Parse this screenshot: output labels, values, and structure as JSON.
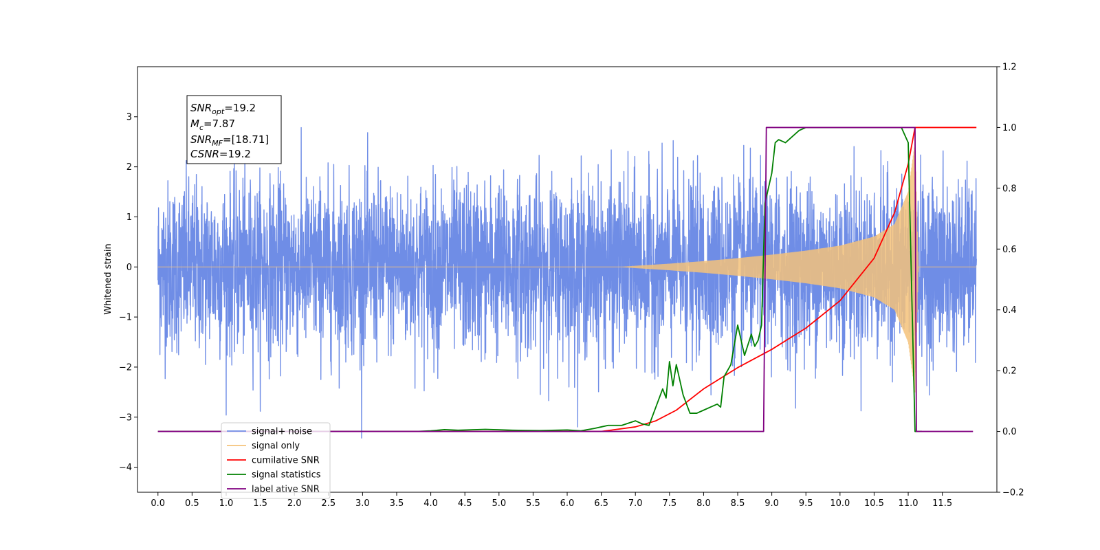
{
  "chart_data": {
    "type": "line",
    "ylabel": "Whitened strain",
    "x_ticks": [
      0.0,
      0.5,
      1.0,
      1.5,
      2.0,
      2.5,
      3.0,
      3.5,
      4.0,
      4.5,
      5.0,
      5.5,
      6.0,
      6.5,
      7.0,
      7.5,
      8.0,
      8.5,
      9.0,
      9.5,
      10.0,
      10.5,
      11.0,
      11.5
    ],
    "x_tick_labels": [
      "0.0",
      "0.5",
      "1.0",
      "1.5",
      "2.0",
      "2.5",
      "3.0",
      "3.5",
      "4.0",
      "4.5",
      "5.0",
      "5.5",
      "6.0",
      "6.5",
      "7.0",
      "7.5",
      "8.0",
      "8.5",
      "9.0",
      "9.5",
      "10.0",
      "10.5",
      "11.0",
      "11.5"
    ],
    "xlim": [
      -0.3,
      12.3
    ],
    "ylim_left": [
      -4.5,
      4.0
    ],
    "y_ticks_left": [
      -4,
      -3,
      -2,
      -1,
      0,
      1,
      2,
      3
    ],
    "y_tick_labels_left": [
      "−4",
      "−3",
      "−2",
      "−1",
      "0",
      "1",
      "2",
      "3"
    ],
    "ylim_right": [
      -0.2,
      1.2
    ],
    "y_ticks_right": [
      -0.2,
      0.0,
      0.2,
      0.4,
      0.6,
      0.8,
      1.0,
      1.2
    ],
    "y_tick_labels_right": [
      "−0.2",
      "0.0",
      "0.2",
      "0.4",
      "0.6",
      "0.8",
      "1.0",
      "1.2"
    ],
    "legend_position": "lower-left",
    "grid": false,
    "annotation": {
      "lines": [
        {
          "main": "SNR",
          "sub": "opt",
          "rest": "=19.2"
        },
        {
          "main": "M",
          "sub": "c",
          "rest": "=7.87"
        },
        {
          "main": "SNR",
          "sub": "MF",
          "rest": "=[18.71]"
        },
        {
          "main": "CSNR",
          "sub": "",
          "rest": "=19.2"
        }
      ]
    },
    "series": [
      {
        "name": "signal+ noise",
        "color": "#6f8de6",
        "axis": "left",
        "kind": "noise",
        "x_range": [
          0.0,
          12.0
        ],
        "noise_std": 1.0,
        "approx_range": [
          -4.1,
          3.6
        ]
      },
      {
        "name": "signal only",
        "color": "#f5c27a",
        "axis": "left",
        "kind": "chirp",
        "x_range": [
          0.0,
          12.0
        ],
        "merger_x": 11.1,
        "envelope_x": [
          0.0,
          6.8,
          7.5,
          8.0,
          8.5,
          9.0,
          9.5,
          10.0,
          10.5,
          10.8,
          11.0,
          11.1,
          11.15,
          12.0
        ],
        "envelope_y": [
          0.0,
          0.0,
          0.06,
          0.11,
          0.17,
          0.24,
          0.32,
          0.42,
          0.6,
          0.85,
          1.5,
          2.5,
          0.0,
          0.0
        ]
      },
      {
        "name": "cumilative SNR",
        "color": "#ff0000",
        "axis": "right",
        "x": [
          0.0,
          6.5,
          7.0,
          7.3,
          7.6,
          8.0,
          8.5,
          9.0,
          9.5,
          10.0,
          10.5,
          10.8,
          11.0,
          11.1,
          11.15,
          12.0
        ],
        "y": [
          0.0,
          0.0,
          0.015,
          0.035,
          0.07,
          0.14,
          0.21,
          0.27,
          0.34,
          0.43,
          0.57,
          0.72,
          0.88,
          1.0,
          1.0,
          1.0
        ]
      },
      {
        "name": "signal statistics",
        "color": "#008000",
        "axis": "right",
        "x": [
          0.0,
          3.8,
          4.0,
          4.2,
          4.4,
          4.8,
          5.2,
          5.6,
          6.0,
          6.2,
          6.4,
          6.5,
          6.6,
          6.8,
          7.0,
          7.1,
          7.2,
          7.3,
          7.4,
          7.45,
          7.5,
          7.55,
          7.6,
          7.7,
          7.8,
          7.9,
          8.0,
          8.1,
          8.2,
          8.25,
          8.3,
          8.4,
          8.5,
          8.55,
          8.6,
          8.7,
          8.75,
          8.8,
          8.85,
          8.9,
          9.0,
          9.05,
          9.1,
          9.2,
          9.3,
          9.4,
          9.5,
          9.6,
          10.0,
          10.5,
          10.9,
          11.0,
          11.1,
          11.2
        ],
        "y": [
          0.0,
          0.0,
          0.002,
          0.006,
          0.004,
          0.007,
          0.004,
          0.003,
          0.005,
          0.002,
          0.01,
          0.015,
          0.02,
          0.02,
          0.035,
          0.025,
          0.02,
          0.08,
          0.14,
          0.11,
          0.23,
          0.15,
          0.22,
          0.12,
          0.06,
          0.06,
          0.07,
          0.08,
          0.09,
          0.08,
          0.18,
          0.22,
          0.35,
          0.3,
          0.25,
          0.32,
          0.28,
          0.3,
          0.35,
          0.75,
          0.85,
          0.95,
          0.96,
          0.95,
          0.97,
          0.99,
          1.0,
          1.0,
          1.0,
          1.0,
          1.0,
          0.95,
          0.0,
          0.0
        ]
      },
      {
        "name": "label",
        "color": "#800080",
        "axis": "right",
        "x": [
          0.0,
          8.88,
          8.92,
          11.1,
          11.12,
          11.95
        ],
        "y": [
          0.0,
          0.0,
          1.0,
          1.0,
          0.0,
          0.0
        ]
      }
    ],
    "legend_hidden_text": "cumilative SNR"
  }
}
